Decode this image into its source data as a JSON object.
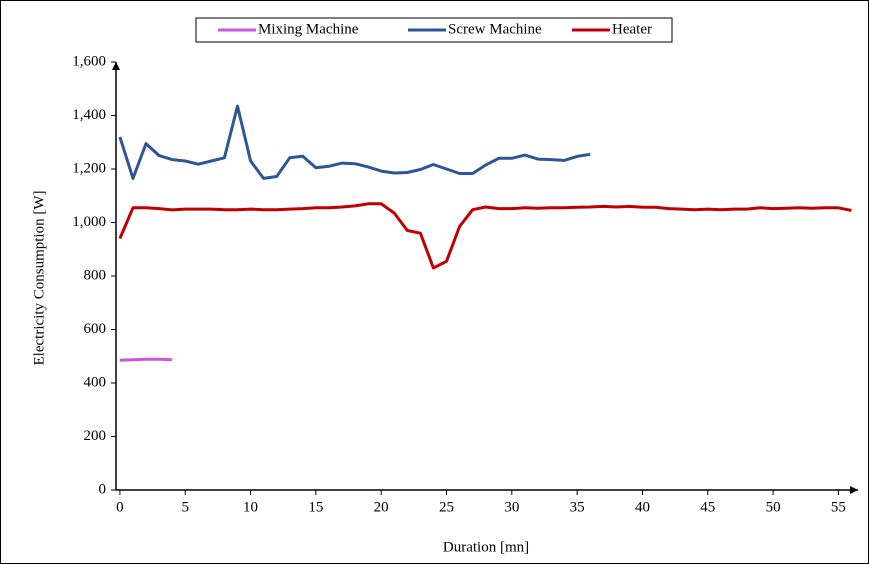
{
  "chart_data": {
    "type": "line",
    "x_label": "Duration [mn]",
    "y_label": "Electricity  Consumption [W]",
    "xlim": [
      -0.3,
      56.5
    ],
    "xticks": [
      0,
      5,
      10,
      15,
      20,
      25,
      30,
      35,
      40,
      45,
      50,
      55
    ],
    "ylim": [
      0,
      1600
    ],
    "yticks": [
      0,
      200,
      400,
      600,
      800,
      {
        "value": 1000,
        "label": "1,000"
      },
      {
        "value": 1200,
        "label": "1,200"
      },
      {
        "value": 1400,
        "label": "1,400"
      },
      {
        "value": 1600,
        "label": "1,600"
      }
    ],
    "grid": false,
    "series": [
      {
        "name": "Mixing Machine",
        "color": "#cc55dd",
        "x": [
          0,
          1,
          2,
          3,
          4
        ],
        "values": [
          485,
          487,
          489,
          489,
          487
        ]
      },
      {
        "name": "Screw Machine",
        "color": "#2e5597",
        "x": [
          0,
          1,
          2,
          3,
          4,
          5,
          6,
          7,
          8,
          9,
          10,
          11,
          12,
          13,
          14,
          15,
          16,
          17,
          18,
          19,
          20,
          21,
          22,
          23,
          24,
          25,
          26,
          27,
          28,
          29,
          30,
          31,
          32,
          33,
          34,
          35,
          36
        ],
        "values": [
          1320,
          1165,
          1295,
          1250,
          1235,
          1230,
          1218,
          1230,
          1242,
          1435,
          1230,
          1165,
          1172,
          1242,
          1248,
          1205,
          1210,
          1222,
          1220,
          1208,
          1192,
          1185,
          1187,
          1198,
          1217,
          1200,
          1183,
          1183,
          1215,
          1240,
          1240,
          1252,
          1237,
          1235,
          1232,
          1247,
          1255
        ]
      },
      {
        "name": "Heater",
        "color": "#c00000",
        "x": [
          0,
          1,
          2,
          3,
          4,
          5,
          6,
          7,
          8,
          9,
          10,
          11,
          12,
          13,
          14,
          15,
          16,
          17,
          18,
          19,
          20,
          21,
          22,
          23,
          24,
          25,
          26,
          27,
          28,
          29,
          30,
          31,
          32,
          33,
          34,
          35,
          36,
          37,
          38,
          39,
          40,
          41,
          42,
          43,
          44,
          45,
          46,
          47,
          48,
          49,
          50,
          51,
          52,
          53,
          54,
          55,
          56
        ],
        "values": [
          940,
          1055,
          1055,
          1052,
          1047,
          1050,
          1050,
          1050,
          1048,
          1048,
          1050,
          1048,
          1048,
          1050,
          1052,
          1055,
          1055,
          1058,
          1062,
          1070,
          1070,
          1035,
          970,
          960,
          830,
          855,
          985,
          1048,
          1058,
          1052,
          1052,
          1055,
          1053,
          1055,
          1055,
          1057,
          1058,
          1060,
          1058,
          1060,
          1057,
          1057,
          1052,
          1050,
          1048,
          1050,
          1048,
          1050,
          1050,
          1055,
          1052,
          1053,
          1055,
          1053,
          1055,
          1055,
          1045
        ]
      }
    ]
  }
}
